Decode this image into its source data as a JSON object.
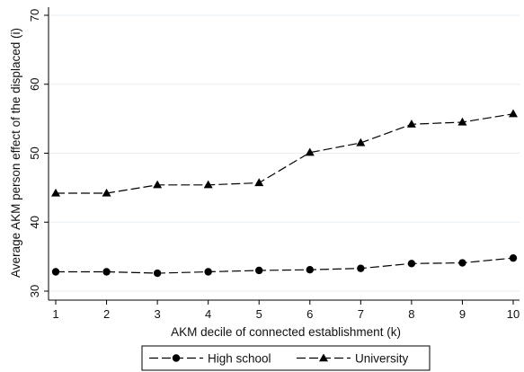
{
  "chart_data": {
    "type": "line",
    "xlabel": "AKM decile of connected establishment (k)",
    "ylabel": "Average AKM person effect of the displaced (i)",
    "x": [
      1,
      2,
      3,
      4,
      5,
      6,
      7,
      8,
      9,
      10
    ],
    "xlim": [
      1,
      10
    ],
    "ylim": [
      30,
      70
    ],
    "xticks": [
      "1",
      "2",
      "3",
      "4",
      "5",
      "6",
      "7",
      "8",
      "9",
      "10"
    ],
    "yticks": [
      "30",
      "40",
      "50",
      "60",
      "70"
    ],
    "grid": true,
    "legend": "bottom",
    "series": [
      {
        "name": "High school",
        "marker": "circle",
        "color": "#000000",
        "values": [
          32.8,
          32.8,
          32.6,
          32.8,
          33.0,
          33.1,
          33.3,
          34.0,
          34.1,
          34.8
        ]
      },
      {
        "name": "University",
        "marker": "triangle",
        "color": "#000000",
        "values": [
          44.2,
          44.2,
          45.4,
          45.4,
          45.7,
          50.1,
          51.5,
          54.2,
          54.5,
          55.7
        ]
      }
    ]
  }
}
